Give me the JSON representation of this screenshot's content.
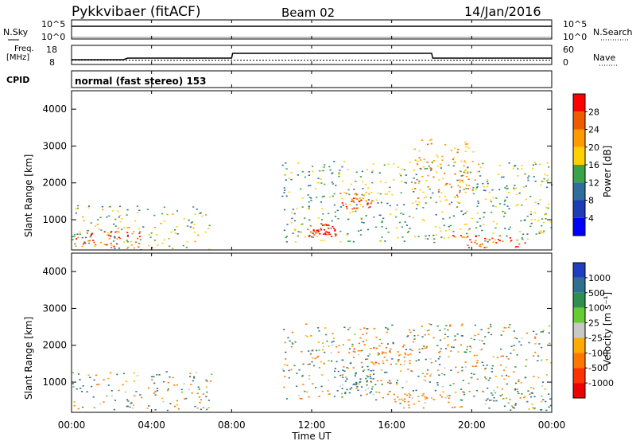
{
  "header": {
    "station": "Pykkvibaer (fitACF)",
    "beam": "Beam 02",
    "date": "14/Jan/2016"
  },
  "top_panels": {
    "nsky_label": "N.Sky",
    "nsearch_label": "N.Search",
    "nsky_ticks": [
      "10^5",
      "10^0"
    ],
    "nsearch_ticks": [
      "10^5",
      "10^0"
    ],
    "freq_label_1": "Freq.",
    "freq_label_2": "[MHz]",
    "freq_ticks": [
      "18",
      "8"
    ],
    "nave_ticks": [
      "60",
      "0"
    ],
    "nave_label": "Nave",
    "cpid_label": "CPID",
    "cpid_text": "normal (fast stereo) 153"
  },
  "axes": {
    "xlabel": "Time UT",
    "x_ticks": [
      "00:00",
      "04:00",
      "08:00",
      "12:00",
      "16:00",
      "20:00",
      "00:00"
    ],
    "ylabel": "Slant Range [km]",
    "y_ticks": [
      "4000",
      "3000",
      "2000",
      "1000"
    ]
  },
  "colorbars": {
    "power": {
      "label": "Power [dB]",
      "ticks": [
        "28",
        "24",
        "20",
        "16",
        "12",
        "8",
        "4"
      ],
      "colors": [
        "#ff0000",
        "#f05a00",
        "#ff9a00",
        "#ffd000",
        "#3aa34a",
        "#2f6e9a",
        "#1e3cb4",
        "#0000ff"
      ]
    },
    "velocity": {
      "label": "Velocity [m s⁻¹]",
      "ticks": [
        "1000",
        "500",
        "100",
        "25",
        "-25",
        "-100",
        "-500",
        "-1000"
      ],
      "colors": [
        "#1f3fbf",
        "#2f6f8f",
        "#2f8f4f",
        "#66cc33",
        "#c8c8c8",
        "#ffaa00",
        "#ff7700",
        "#ff3300",
        "#ee0000"
      ]
    }
  },
  "chart_data": [
    {
      "type": "line",
      "panel": "N.Sky / N.Search",
      "x_range_hours": [
        0,
        24
      ],
      "series": [
        {
          "name": "N.Sky",
          "x": [
            0,
            4,
            8,
            12,
            16,
            20,
            24
          ],
          "values": [
            10000,
            10000,
            10000,
            10000,
            10000,
            10000,
            10000
          ]
        },
        {
          "name": "N.Search",
          "x": [
            0,
            24
          ],
          "values": [
            1,
            1
          ]
        }
      ]
    },
    {
      "type": "line",
      "panel": "Freq. / Nave",
      "ylim_freq": [
        8,
        18
      ],
      "ylim_nave": [
        0,
        60
      ],
      "series": [
        {
          "name": "Freq.",
          "x": [
            0,
            2.6,
            2.8,
            8.0,
            8.05,
            18.0,
            18.05,
            24
          ],
          "values": [
            10,
            10,
            11,
            11,
            14,
            14,
            11,
            11
          ]
        },
        {
          "name": "Nave",
          "x": [
            0,
            24
          ],
          "values": [
            10,
            10
          ]
        }
      ]
    },
    {
      "type": "heatmap",
      "panel": "Power",
      "ylim": [
        180,
        4500
      ],
      "xlim_hours": [
        0,
        24
      ],
      "regions": [
        {
          "t0": 0.0,
          "t1": 7.0,
          "r0": 200,
          "r1": 1400,
          "value_db": 14
        },
        {
          "t0": 0.1,
          "t1": 3.5,
          "r0": 250,
          "r1": 700,
          "value_db": 26
        },
        {
          "t0": 10.5,
          "t1": 24.0,
          "r0": 400,
          "r1": 2600,
          "value_db": 12
        },
        {
          "t0": 11.8,
          "t1": 13.3,
          "r0": 550,
          "r1": 900,
          "value_db": 28
        },
        {
          "t0": 13.3,
          "t1": 15.0,
          "r0": 1300,
          "r1": 1800,
          "value_db": 24
        },
        {
          "t0": 19.0,
          "t1": 22.8,
          "r0": 250,
          "r1": 600,
          "value_db": 26
        },
        {
          "t0": 17.0,
          "t1": 20.3,
          "r0": 1400,
          "r1": 3200,
          "value_db": 20
        }
      ]
    },
    {
      "type": "heatmap",
      "panel": "Velocity",
      "ylim": [
        180,
        4500
      ],
      "xlim_hours": [
        0,
        24
      ],
      "regions": [
        {
          "t0": 0.0,
          "t1": 7.0,
          "r0": 250,
          "r1": 1300,
          "value_ms": 0
        },
        {
          "t0": 10.5,
          "t1": 24.0,
          "r0": 500,
          "r1": 2600,
          "value_ms": 0
        },
        {
          "t0": 13.0,
          "t1": 15.2,
          "r0": 700,
          "r1": 1400,
          "value_ms": 200
        },
        {
          "t0": 14.0,
          "t1": 17.0,
          "r0": 1500,
          "r1": 2100,
          "value_ms": -300
        },
        {
          "t0": 20.5,
          "t1": 24.0,
          "r0": 250,
          "r1": 800,
          "value_ms": 150
        },
        {
          "t0": 16.0,
          "t1": 19.5,
          "r0": 300,
          "r1": 700,
          "value_ms": -150
        }
      ]
    }
  ]
}
